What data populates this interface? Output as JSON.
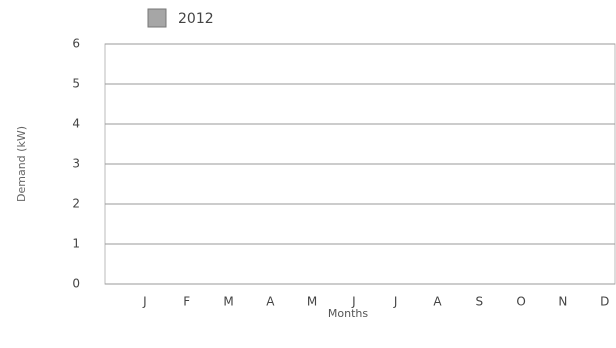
{
  "chart_data": {
    "type": "bar",
    "categories": [
      "J",
      "F",
      "M",
      "A",
      "M",
      "J",
      "J",
      "A",
      "S",
      "O",
      "N",
      "D"
    ],
    "series": [
      {
        "name": "2012",
        "color": "#a6a6a6",
        "values": [
          null,
          null,
          null,
          null,
          null,
          null,
          null,
          null,
          null,
          null,
          null,
          null
        ]
      }
    ],
    "ylim": [
      0,
      6
    ],
    "yticks": [
      0,
      1,
      2,
      3,
      4,
      5,
      6
    ],
    "ylabel": "Demand (kW)",
    "xlabel": "Months",
    "grid": true,
    "legend": "top"
  }
}
